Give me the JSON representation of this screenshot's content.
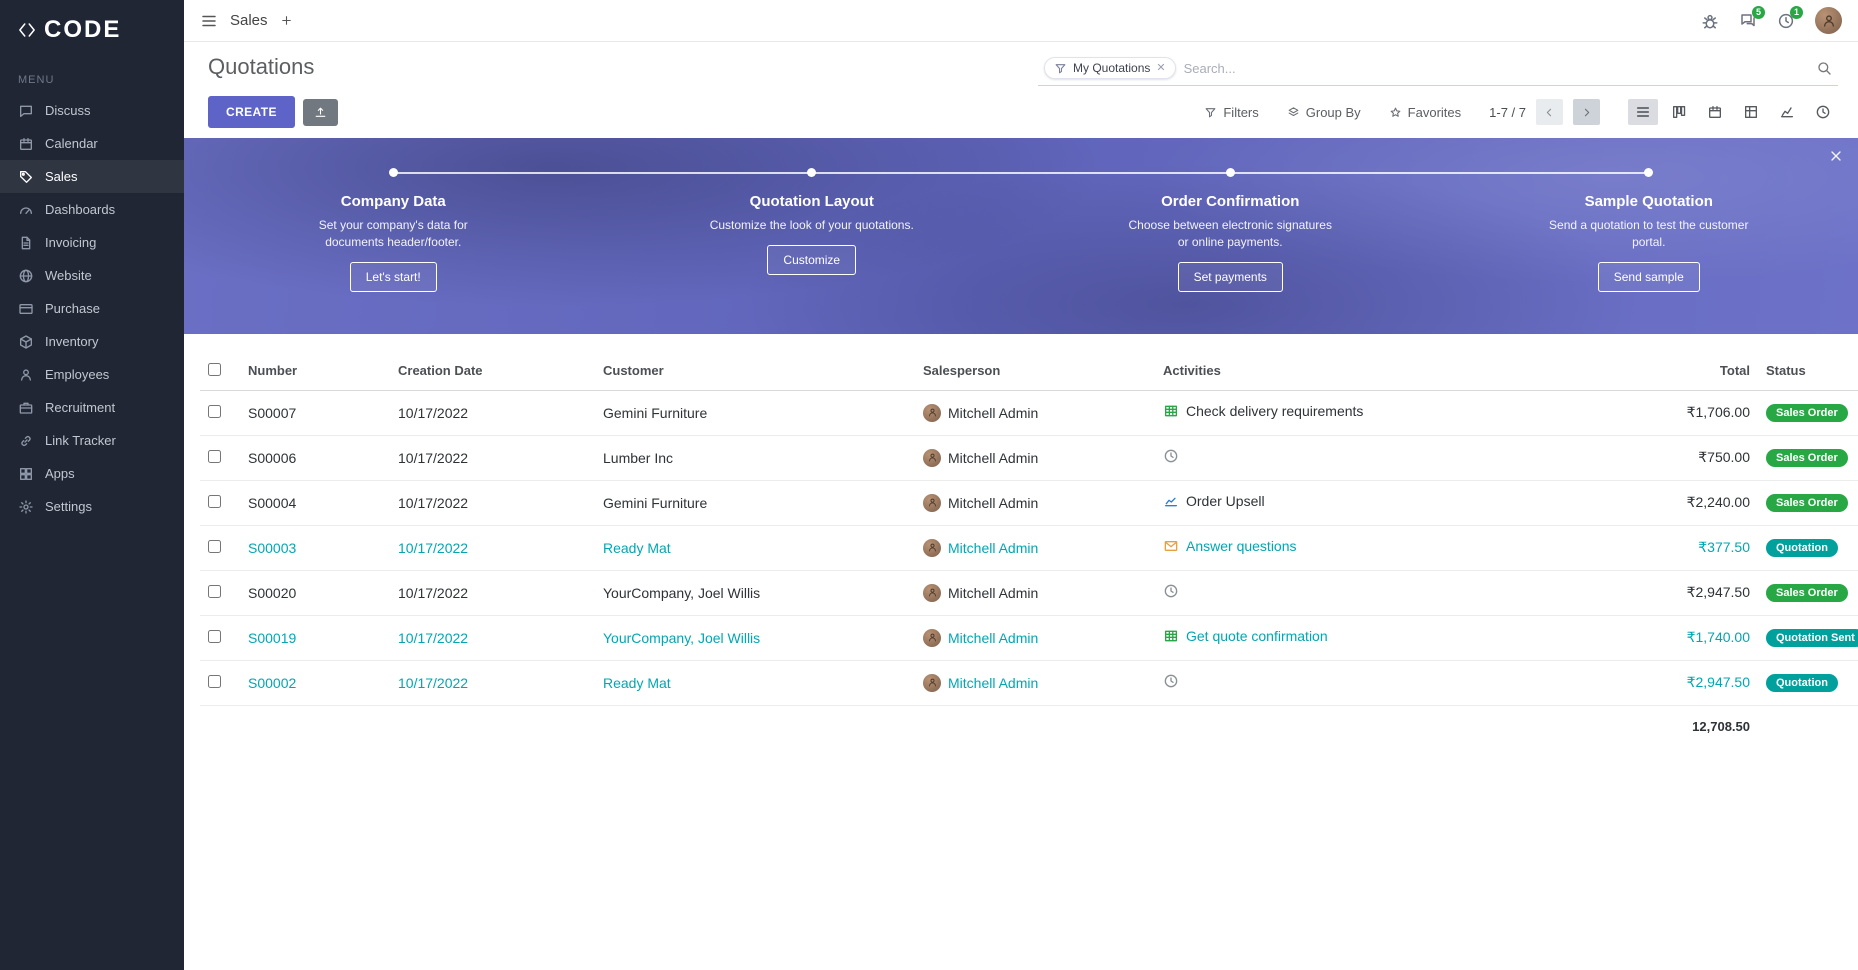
{
  "brand": {
    "name": "CODE"
  },
  "topbar": {
    "app_title": "Sales",
    "messages_badge": "5",
    "activities_badge": "1"
  },
  "sidebar": {
    "menu_label": "MENU",
    "items": [
      {
        "label": "Discuss",
        "icon": "discuss",
        "active": false
      },
      {
        "label": "Calendar",
        "icon": "calendar",
        "active": false
      },
      {
        "label": "Sales",
        "icon": "sales",
        "active": true
      },
      {
        "label": "Dashboards",
        "icon": "dashboards",
        "active": false
      },
      {
        "label": "Invoicing",
        "icon": "invoicing",
        "active": false
      },
      {
        "label": "Website",
        "icon": "website",
        "active": false
      },
      {
        "label": "Purchase",
        "icon": "purchase",
        "active": false
      },
      {
        "label": "Inventory",
        "icon": "inventory",
        "active": false
      },
      {
        "label": "Employees",
        "icon": "employees",
        "active": false
      },
      {
        "label": "Recruitment",
        "icon": "recruitment",
        "active": false
      },
      {
        "label": "Link Tracker",
        "icon": "link",
        "active": false
      },
      {
        "label": "Apps",
        "icon": "apps",
        "active": false
      },
      {
        "label": "Settings",
        "icon": "settings",
        "active": false
      }
    ]
  },
  "control_panel": {
    "title": "Quotations",
    "create_label": "CREATE",
    "search": {
      "facet": "My Quotations",
      "placeholder": "Search..."
    },
    "filters_label": "Filters",
    "group_by_label": "Group By",
    "favorites_label": "Favorites",
    "pager": "1-7 / 7"
  },
  "onboarding": {
    "steps": [
      {
        "title": "Company Data",
        "description": "Set your company's data for documents header/footer.",
        "button": "Let's start!"
      },
      {
        "title": "Quotation Layout",
        "description": "Customize the look of your quotations.",
        "button": "Customize"
      },
      {
        "title": "Order Confirmation",
        "description": "Choose between electronic signatures or online payments.",
        "button": "Set payments"
      },
      {
        "title": "Sample Quotation",
        "description": "Send a quotation to test the customer portal.",
        "button": "Send sample"
      }
    ]
  },
  "table": {
    "headers": [
      "Number",
      "Creation Date",
      "Customer",
      "Salesperson",
      "Activities",
      "Total",
      "Status"
    ],
    "rows": [
      {
        "number": "S00007",
        "date": "10/17/2022",
        "customer": "Gemini Furniture",
        "salesperson": "Mitchell Admin",
        "activity_icon": "spreadsheet",
        "activity": "Check delivery requirements",
        "total": "₹1,706.00",
        "status": "Sales Order",
        "status_color": "green",
        "highlight": false
      },
      {
        "number": "S00006",
        "date": "10/17/2022",
        "customer": "Lumber Inc",
        "salesperson": "Mitchell Admin",
        "activity_icon": "clock",
        "activity": "",
        "total": "₹750.00",
        "status": "Sales Order",
        "status_color": "green",
        "highlight": false
      },
      {
        "number": "S00004",
        "date": "10/17/2022",
        "customer": "Gemini Furniture",
        "salesperson": "Mitchell Admin",
        "activity_icon": "chart",
        "activity": "Order Upsell",
        "total": "₹2,240.00",
        "status": "Sales Order",
        "status_color": "green",
        "highlight": false
      },
      {
        "number": "S00003",
        "date": "10/17/2022",
        "customer": "Ready Mat",
        "salesperson": "Mitchell Admin",
        "activity_icon": "envelope",
        "activity": "Answer questions",
        "total": "₹377.50",
        "status": "Quotation",
        "status_color": "teal",
        "highlight": true
      },
      {
        "number": "S00020",
        "date": "10/17/2022",
        "customer": "YourCompany, Joel Willis",
        "salesperson": "Mitchell Admin",
        "activity_icon": "clock",
        "activity": "",
        "total": "₹2,947.50",
        "status": "Sales Order",
        "status_color": "green",
        "highlight": false
      },
      {
        "number": "S00019",
        "date": "10/17/2022",
        "customer": "YourCompany, Joel Willis",
        "salesperson": "Mitchell Admin",
        "activity_icon": "spreadsheet",
        "activity": "Get quote confirmation",
        "total": "₹1,740.00",
        "status": "Quotation Sent",
        "status_color": "teal",
        "highlight": true
      },
      {
        "number": "S00002",
        "date": "10/17/2022",
        "customer": "Ready Mat",
        "salesperson": "Mitchell Admin",
        "activity_icon": "clock",
        "activity": "",
        "total": "₹2,947.50",
        "status": "Quotation",
        "status_color": "teal",
        "highlight": true
      }
    ],
    "total_sum": "12,708.50"
  },
  "colors": {
    "accent": "#5D63C7",
    "teal_link": "#00A7B3",
    "badge_green": "#28A745",
    "badge_teal": "#00A09D",
    "sidebar_bg": "#202633"
  }
}
